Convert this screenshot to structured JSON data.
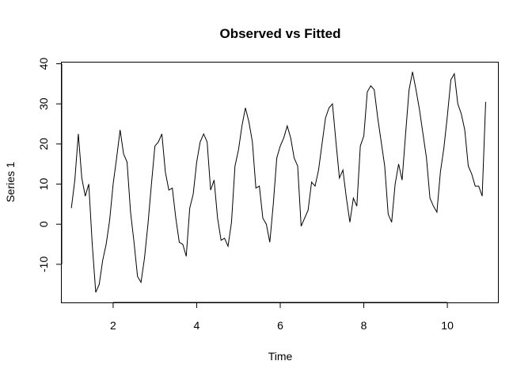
{
  "chart_data": {
    "type": "line",
    "title": "Observed vs Fitted",
    "xlabel": "Time",
    "ylabel": "Series 1",
    "xlim": [
      0.77,
      11.23
    ],
    "ylim": [
      -19.5,
      40.5
    ],
    "xticks": [
      2,
      4,
      6,
      8,
      10
    ],
    "yticks": [
      -10,
      0,
      10,
      20,
      30,
      40
    ],
    "grid": false,
    "legend": "none",
    "line_color": "#000000",
    "series": [
      {
        "x": [
          1.0,
          1.0833,
          1.1667,
          1.25,
          1.3333,
          1.4167,
          1.5,
          1.5833,
          1.6667,
          1.75,
          1.8333,
          1.9167,
          2.0,
          2.0833,
          2.1667,
          2.25,
          2.3333,
          2.4167,
          2.5,
          2.5833,
          2.6667,
          2.75,
          2.8333,
          2.9167,
          3.0,
          3.0833,
          3.1667,
          3.25,
          3.3333,
          3.4167,
          3.5,
          3.5833,
          3.6667,
          3.75,
          3.8333,
          3.9167,
          4.0,
          4.0833,
          4.1667,
          4.25,
          4.3333,
          4.4167,
          4.5,
          4.5833,
          4.6667,
          4.75,
          4.8333,
          4.9167,
          5.0,
          5.0833,
          5.1667,
          5.25,
          5.3333,
          5.4167,
          5.5,
          5.5833,
          5.6667,
          5.75,
          5.8333,
          5.9167,
          6.0,
          6.0833,
          6.1667,
          6.25,
          6.3333,
          6.4167,
          6.5,
          6.5833,
          6.6667,
          6.75,
          6.8333,
          6.9167,
          7.0,
          7.0833,
          7.1667,
          7.25,
          7.3333,
          7.4167,
          7.5,
          7.5833,
          7.6667,
          7.75,
          7.8333,
          7.9167,
          8.0,
          8.0833,
          8.1667,
          8.25,
          8.3333,
          8.4167,
          8.5,
          8.5833,
          8.6667,
          8.75,
          8.8333,
          8.9167,
          9.0,
          9.0833,
          9.1667,
          9.25,
          9.3333,
          9.4167,
          9.5,
          9.5833,
          9.6667,
          9.75,
          9.8333,
          9.9167,
          10.0,
          10.0833,
          10.1667,
          10.25,
          10.3333,
          10.4167,
          10.5,
          10.5833,
          10.6667,
          10.75,
          10.8333,
          10.9167
        ],
        "values": [
          4,
          11,
          22.5,
          11.5,
          7,
          10,
          -5,
          -17,
          -15,
          -9,
          -5,
          1,
          10,
          16.5,
          23.5,
          17.5,
          15.5,
          3,
          -4.5,
          -13,
          -14.5,
          -8.5,
          0,
          10,
          19.5,
          20.5,
          22.5,
          13,
          8.5,
          9,
          1.5,
          -4.5,
          -5,
          -8,
          4,
          7.5,
          15.5,
          20.5,
          22.5,
          20.5,
          8.5,
          11,
          1.5,
          -4,
          -3.5,
          -5.5,
          0.5,
          14.5,
          18.5,
          24.5,
          29,
          25.5,
          20.5,
          9,
          9.5,
          1.5,
          0,
          -4.5,
          5,
          16.5,
          19.5,
          21.5,
          24.5,
          21.5,
          16.5,
          14.5,
          -0.5,
          1.5,
          3.5,
          10.5,
          9.5,
          13.5,
          20,
          26.5,
          29,
          30,
          20.5,
          11.5,
          13.5,
          6.5,
          0.5,
          6.5,
          4.5,
          19.5,
          22,
          33,
          34.5,
          33.5,
          26.5,
          20.5,
          14.5,
          2.5,
          0.5,
          10,
          15,
          11,
          22.5,
          33.5,
          38,
          33.5,
          28.5,
          22.5,
          16.5,
          6.5,
          4.5,
          3,
          13,
          19,
          27,
          36,
          37.5,
          30,
          27.5,
          23.5,
          14.5,
          12.5,
          9.5,
          9.5,
          7,
          30.5
        ]
      }
    ]
  }
}
